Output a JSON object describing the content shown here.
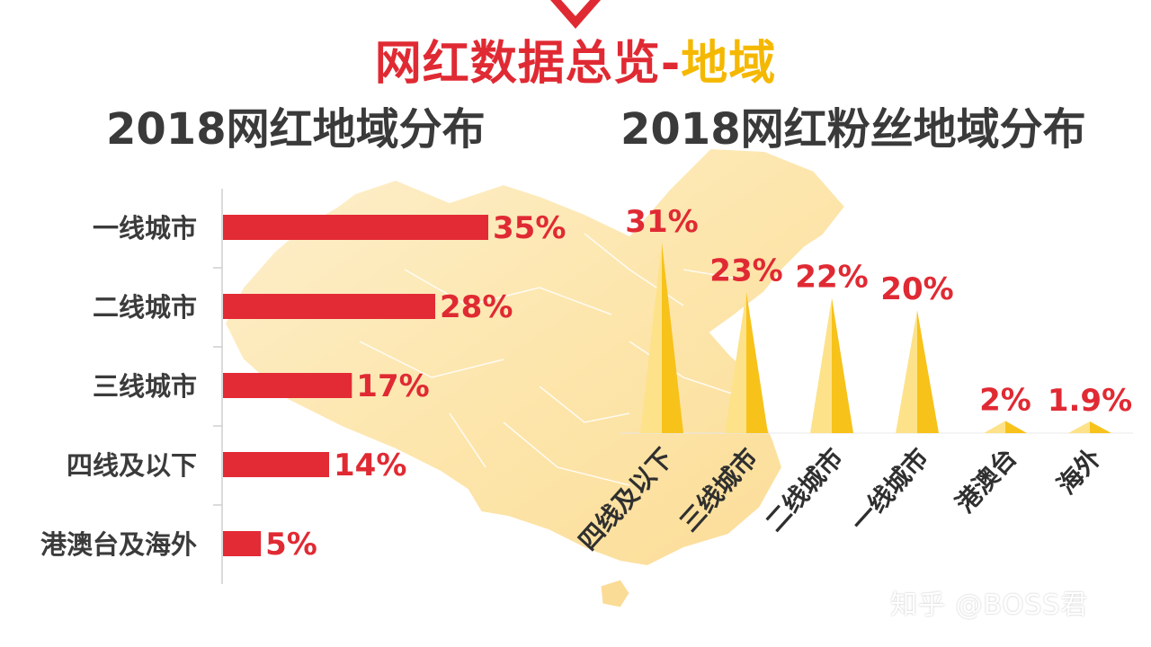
{
  "header": {
    "title_main": "网红数据总览-",
    "title_accent": "地域"
  },
  "chart_data": [
    {
      "type": "bar",
      "orientation": "horizontal",
      "title": "2018网红地域分布",
      "categories": [
        "一线城市",
        "二线城市",
        "三线城市",
        "四线及以下",
        "港澳台及海外"
      ],
      "values": [
        35,
        28,
        17,
        14,
        5
      ],
      "value_labels": [
        "35%",
        "28%",
        "17%",
        "14%",
        "5%"
      ],
      "xlim": [
        0,
        35
      ],
      "grid": false,
      "bar_color": "#e32b35"
    },
    {
      "type": "bar",
      "style": "triangle-peaks",
      "title": "2018网红粉丝地域分布",
      "categories": [
        "四线及以下",
        "三线城市",
        "二线城市",
        "一线城市",
        "港澳台",
        "海外"
      ],
      "values": [
        31,
        23,
        22,
        20,
        2,
        1.9
      ],
      "value_labels": [
        "31%",
        "23%",
        "22%",
        "20%",
        "2%",
        "1.9%"
      ],
      "ylim": [
        0,
        31
      ],
      "grid": false,
      "bar_color": "#f7c21a",
      "bar_light_color": "#fde28a"
    }
  ],
  "watermark": "知乎 @BOSS君",
  "colors": {
    "accent_red": "#e02a33",
    "accent_gold": "#f5b800",
    "label_red": "#e02a33",
    "map_fill": "#fde9b8"
  }
}
